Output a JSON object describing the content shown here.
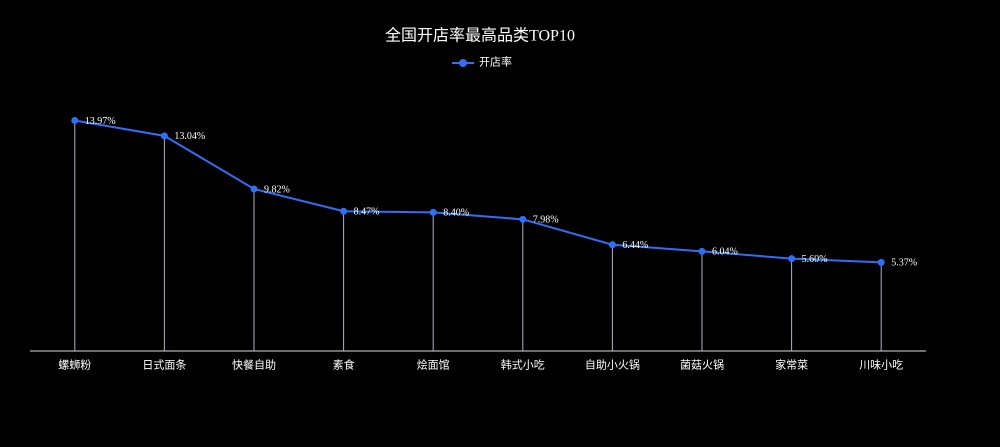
{
  "chart_data": {
    "type": "line",
    "title": "全国开店率最高品类TOP10",
    "categories": [
      "螺蛳粉",
      "日式面条",
      "快餐自助",
      "素食",
      "烩面馆",
      "韩式小吃",
      "自助小火锅",
      "菌菇火锅",
      "家常菜",
      "川味小吃"
    ],
    "series": [
      {
        "name": "开店率",
        "color": "#2f6ff5",
        "values": [
          13.97,
          13.04,
          9.82,
          8.47,
          8.4,
          7.98,
          6.44,
          6.04,
          5.6,
          5.37
        ],
        "value_labels": [
          "13.97%",
          "13.04%",
          "9.82%",
          "8.47%",
          "8.40%",
          "7.98%",
          "6.44%",
          "6.04%",
          "5.60%",
          "5.37%"
        ]
      }
    ],
    "ylim": [
      0,
      16
    ]
  }
}
